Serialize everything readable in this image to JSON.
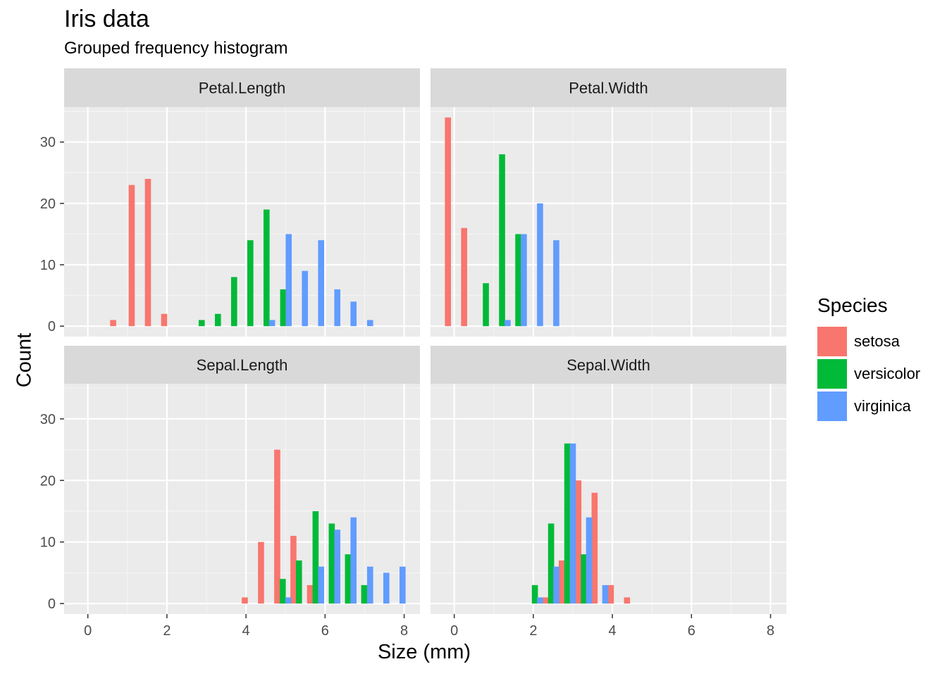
{
  "chart_data": {
    "type": "bar",
    "title": "Iris data",
    "subtitle": "Grouped frequency histogram",
    "xlabel": "Size (mm)",
    "ylabel": "Count",
    "xlim": [
      -0.6,
      8.4
    ],
    "ylim": [
      -1.7,
      35.7
    ],
    "xticks": [
      0,
      2,
      4,
      6,
      8
    ],
    "yticks": [
      0,
      10,
      20,
      30
    ],
    "legend": {
      "title": "Species",
      "position": "right",
      "entries": [
        {
          "name": "setosa",
          "color": "#F8766D"
        },
        {
          "name": "versicolor",
          "color": "#00BA38"
        },
        {
          "name": "virginica",
          "color": "#619CFF"
        }
      ]
    },
    "panels": [
      {
        "label": "Petal.Length",
        "bars": [
          {
            "x": 0.64,
            "count": 1,
            "species": "setosa"
          },
          {
            "x": 1.11,
            "count": 23,
            "species": "setosa"
          },
          {
            "x": 1.52,
            "count": 24,
            "species": "setosa"
          },
          {
            "x": 1.93,
            "count": 2,
            "species": "setosa"
          },
          {
            "x": 2.88,
            "count": 1,
            "species": "versicolor"
          },
          {
            "x": 3.29,
            "count": 2,
            "species": "versicolor"
          },
          {
            "x": 3.7,
            "count": 8,
            "species": "versicolor"
          },
          {
            "x": 4.11,
            "count": 14,
            "species": "versicolor"
          },
          {
            "x": 4.52,
            "count": 19,
            "species": "versicolor"
          },
          {
            "x": 4.94,
            "count": 6,
            "species": "versicolor"
          },
          {
            "x": 4.66,
            "count": 1,
            "species": "virginica"
          },
          {
            "x": 5.08,
            "count": 15,
            "species": "virginica"
          },
          {
            "x": 5.49,
            "count": 9,
            "species": "virginica"
          },
          {
            "x": 5.9,
            "count": 14,
            "species": "virginica"
          },
          {
            "x": 6.31,
            "count": 6,
            "species": "virginica"
          },
          {
            "x": 6.72,
            "count": 4,
            "species": "virginica"
          },
          {
            "x": 7.14,
            "count": 1,
            "species": "virginica"
          }
        ]
      },
      {
        "label": "Petal.Width",
        "bars": [
          {
            "x": -0.16,
            "count": 34,
            "species": "setosa"
          },
          {
            "x": 0.25,
            "count": 16,
            "species": "setosa"
          },
          {
            "x": 0.8,
            "count": 7,
            "species": "versicolor"
          },
          {
            "x": 1.21,
            "count": 28,
            "species": "versicolor"
          },
          {
            "x": 1.62,
            "count": 15,
            "species": "versicolor"
          },
          {
            "x": 1.35,
            "count": 1,
            "species": "virginica"
          },
          {
            "x": 1.76,
            "count": 15,
            "species": "virginica"
          },
          {
            "x": 2.17,
            "count": 20,
            "species": "virginica"
          },
          {
            "x": 2.58,
            "count": 14,
            "species": "virginica"
          }
        ]
      },
      {
        "label": "Sepal.Length",
        "bars": [
          {
            "x": 3.97,
            "count": 1,
            "species": "setosa"
          },
          {
            "x": 4.38,
            "count": 10,
            "species": "setosa"
          },
          {
            "x": 4.79,
            "count": 25,
            "species": "setosa"
          },
          {
            "x": 5.2,
            "count": 11,
            "species": "setosa"
          },
          {
            "x": 5.62,
            "count": 3,
            "species": "setosa"
          },
          {
            "x": 4.93,
            "count": 4,
            "species": "versicolor"
          },
          {
            "x": 5.34,
            "count": 7,
            "species": "versicolor"
          },
          {
            "x": 5.76,
            "count": 15,
            "species": "versicolor"
          },
          {
            "x": 6.17,
            "count": 13,
            "species": "versicolor"
          },
          {
            "x": 6.58,
            "count": 8,
            "species": "versicolor"
          },
          {
            "x": 6.99,
            "count": 3,
            "species": "versicolor"
          },
          {
            "x": 5.07,
            "count": 1,
            "species": "virginica"
          },
          {
            "x": 5.9,
            "count": 6,
            "species": "virginica"
          },
          {
            "x": 6.31,
            "count": 12,
            "species": "virginica"
          },
          {
            "x": 6.72,
            "count": 14,
            "species": "virginica"
          },
          {
            "x": 7.14,
            "count": 6,
            "species": "virginica"
          },
          {
            "x": 7.55,
            "count": 5,
            "species": "virginica"
          },
          {
            "x": 7.96,
            "count": 6,
            "species": "virginica"
          }
        ]
      },
      {
        "label": "Sepal.Width",
        "bars": [
          {
            "x": 2.31,
            "count": 1,
            "species": "setosa"
          },
          {
            "x": 2.72,
            "count": 7,
            "species": "setosa"
          },
          {
            "x": 3.14,
            "count": 20,
            "species": "setosa"
          },
          {
            "x": 3.55,
            "count": 18,
            "species": "setosa"
          },
          {
            "x": 3.96,
            "count": 3,
            "species": "setosa"
          },
          {
            "x": 4.37,
            "count": 1,
            "species": "setosa"
          },
          {
            "x": 2.04,
            "count": 3,
            "species": "versicolor"
          },
          {
            "x": 2.45,
            "count": 13,
            "species": "versicolor"
          },
          {
            "x": 2.86,
            "count": 26,
            "species": "versicolor"
          },
          {
            "x": 3.28,
            "count": 8,
            "species": "versicolor"
          },
          {
            "x": 2.17,
            "count": 1,
            "species": "virginica"
          },
          {
            "x": 2.58,
            "count": 6,
            "species": "virginica"
          },
          {
            "x": 3.0,
            "count": 26,
            "species": "virginica"
          },
          {
            "x": 3.41,
            "count": 14,
            "species": "virginica"
          },
          {
            "x": 3.82,
            "count": 3,
            "species": "virginica"
          }
        ]
      }
    ]
  }
}
